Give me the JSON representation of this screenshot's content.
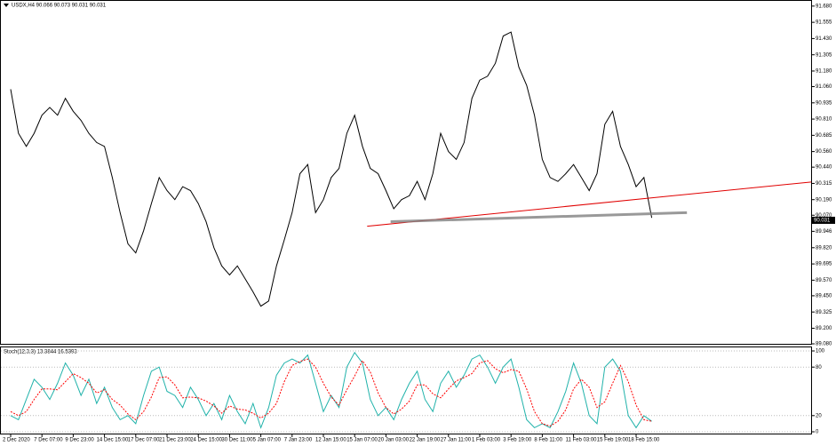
{
  "chart_data": [
    {
      "type": "line",
      "title": "USDX,H4 90.066 90.073 90.031 90.031",
      "categories": [
        "2 Dec 2020",
        null,
        null,
        null,
        "7 Dec 07:00",
        null,
        null,
        null,
        "9 Dec 23:00",
        null,
        null,
        null,
        "14 Dec 15:00",
        null,
        null,
        null,
        "17 Dec 07:00",
        null,
        null,
        null,
        "21 Dec 23:00",
        null,
        null,
        null,
        "24 Dec 15:00",
        null,
        null,
        null,
        "30 Dec 11:00",
        null,
        null,
        null,
        "5 Jan 07:00",
        null,
        null,
        null,
        "7 Jan 23:00",
        null,
        null,
        null,
        "12 Jan 15:00",
        null,
        null,
        null,
        "15 Jan 07:00",
        null,
        null,
        null,
        "20 Jan 03:00",
        null,
        null,
        null,
        "22 Jan 19:00",
        null,
        null,
        null,
        "27 Jan 11:00",
        null,
        null,
        null,
        "1 Feb 03:00",
        null,
        null,
        null,
        "3 Feb 19:00",
        null,
        null,
        null,
        "8 Feb 11:00",
        null,
        null,
        null,
        "11 Feb 03:00",
        null,
        null,
        null,
        "15 Feb 19:00",
        null,
        null,
        null,
        "18 Feb 15:00",
        null,
        null
      ],
      "series": [
        {
          "color": "#000000",
          "values": [
            91.04,
            90.7,
            90.6,
            90.7,
            90.84,
            90.9,
            90.84,
            90.97,
            90.87,
            90.8,
            90.7,
            90.63,
            90.6,
            90.36,
            90.09,
            89.85,
            89.78,
            89.95,
            90.16,
            90.36,
            90.26,
            90.19,
            90.29,
            90.26,
            90.16,
            90.02,
            89.82,
            89.68,
            89.61,
            89.68,
            89.58,
            89.48,
            89.37,
            89.41,
            89.68,
            89.88,
            90.09,
            90.39,
            90.46,
            90.09,
            90.19,
            90.36,
            90.43,
            90.7,
            90.84,
            90.6,
            90.43,
            90.39,
            90.26,
            90.12,
            90.19,
            90.22,
            90.33,
            90.19,
            90.39,
            90.7,
            90.56,
            90.5,
            90.63,
            90.97,
            91.11,
            91.14,
            91.24,
            91.45,
            91.48,
            91.21,
            91.07,
            90.84,
            90.5,
            90.36,
            90.33,
            90.39,
            90.46,
            90.36,
            90.26,
            90.39,
            90.77,
            90.87,
            90.6,
            90.46,
            90.29,
            90.36,
            90.05
          ]
        }
      ],
      "ylim": [
        89.08,
        91.72
      ],
      "yticks": [
        {
          "value": 91.68,
          "label": "91.680"
        },
        {
          "value": 91.555,
          "label": "91.555"
        },
        {
          "value": 91.43,
          "label": "91.430"
        },
        {
          "value": 91.305,
          "label": "91.305"
        },
        {
          "value": 91.18,
          "label": "91.180"
        },
        {
          "value": 91.06,
          "label": "91.060"
        },
        {
          "value": 90.935,
          "label": "90.935"
        },
        {
          "value": 90.81,
          "label": "90.810"
        },
        {
          "value": 90.685,
          "label": "90.685"
        },
        {
          "value": 90.56,
          "label": "90.560"
        },
        {
          "value": 90.44,
          "label": "90.440"
        },
        {
          "value": 90.315,
          "label": "90.315"
        },
        {
          "value": 90.19,
          "label": "90.190"
        },
        {
          "value": 90.07,
          "label": "90.070"
        },
        {
          "value": 89.946,
          "label": "89.946"
        },
        {
          "value": 89.82,
          "label": "89.820"
        },
        {
          "value": 89.695,
          "label": "89.695"
        },
        {
          "value": 89.57,
          "label": "89.570"
        },
        {
          "value": 89.45,
          "label": "89.450"
        },
        {
          "value": 89.325,
          "label": "89.325"
        },
        {
          "value": 89.2,
          "label": "89.200"
        },
        {
          "value": 89.08,
          "label": "89.080"
        }
      ],
      "trendlines": [
        {
          "color": "#e00000",
          "x": [
            45.6,
            102.4
          ],
          "y": [
            89.985,
            90.326
          ]
        },
        {
          "color": "#808080",
          "x": [
            48.6,
            86.5
          ],
          "y": [
            90.02,
            90.09
          ]
        }
      ],
      "last_price": 90.031
    },
    {
      "type": "line",
      "title": "Stoch(12,3,3) 13.3844 16.5393",
      "series": [
        {
          "color": "#20b2aa",
          "values": [
            20,
            15,
            40,
            65,
            55,
            40,
            60,
            85,
            70,
            45,
            65,
            35,
            55,
            30,
            15,
            20,
            10,
            45,
            75,
            80,
            50,
            45,
            30,
            55,
            40,
            20,
            35,
            15,
            45,
            25,
            10,
            35,
            5,
            30,
            70,
            85,
            90,
            85,
            95,
            60,
            25,
            45,
            30,
            80,
            98,
            85,
            40,
            20,
            30,
            15,
            40,
            60,
            75,
            40,
            25,
            60,
            75,
            55,
            70,
            90,
            95,
            80,
            60,
            80,
            90,
            55,
            15,
            5,
            10,
            5,
            25,
            50,
            85,
            60,
            20,
            10,
            80,
            90,
            75,
            20,
            5,
            20,
            13
          ]
        },
        {
          "color": "#ff0000",
          "values": [
            25,
            20,
            25,
            40,
            53,
            53,
            52,
            62,
            72,
            67,
            60,
            48,
            52,
            40,
            33,
            22,
            15,
            25,
            43,
            67,
            68,
            58,
            42,
            43,
            42,
            38,
            32,
            23,
            32,
            28,
            27,
            23,
            17,
            23,
            35,
            62,
            82,
            87,
            90,
            80,
            60,
            43,
            33,
            52,
            69,
            88,
            74,
            48,
            30,
            22,
            28,
            38,
            58,
            58,
            47,
            42,
            53,
            63,
            67,
            72,
            85,
            88,
            78,
            73,
            77,
            75,
            53,
            25,
            10,
            7,
            13,
            27,
            53,
            65,
            55,
            30,
            37,
            60,
            82,
            62,
            33,
            15,
            13
          ]
        }
      ],
      "ylim": [
        0,
        100
      ],
      "yticks": [
        100,
        80,
        20,
        0
      ],
      "grid": true
    }
  ]
}
